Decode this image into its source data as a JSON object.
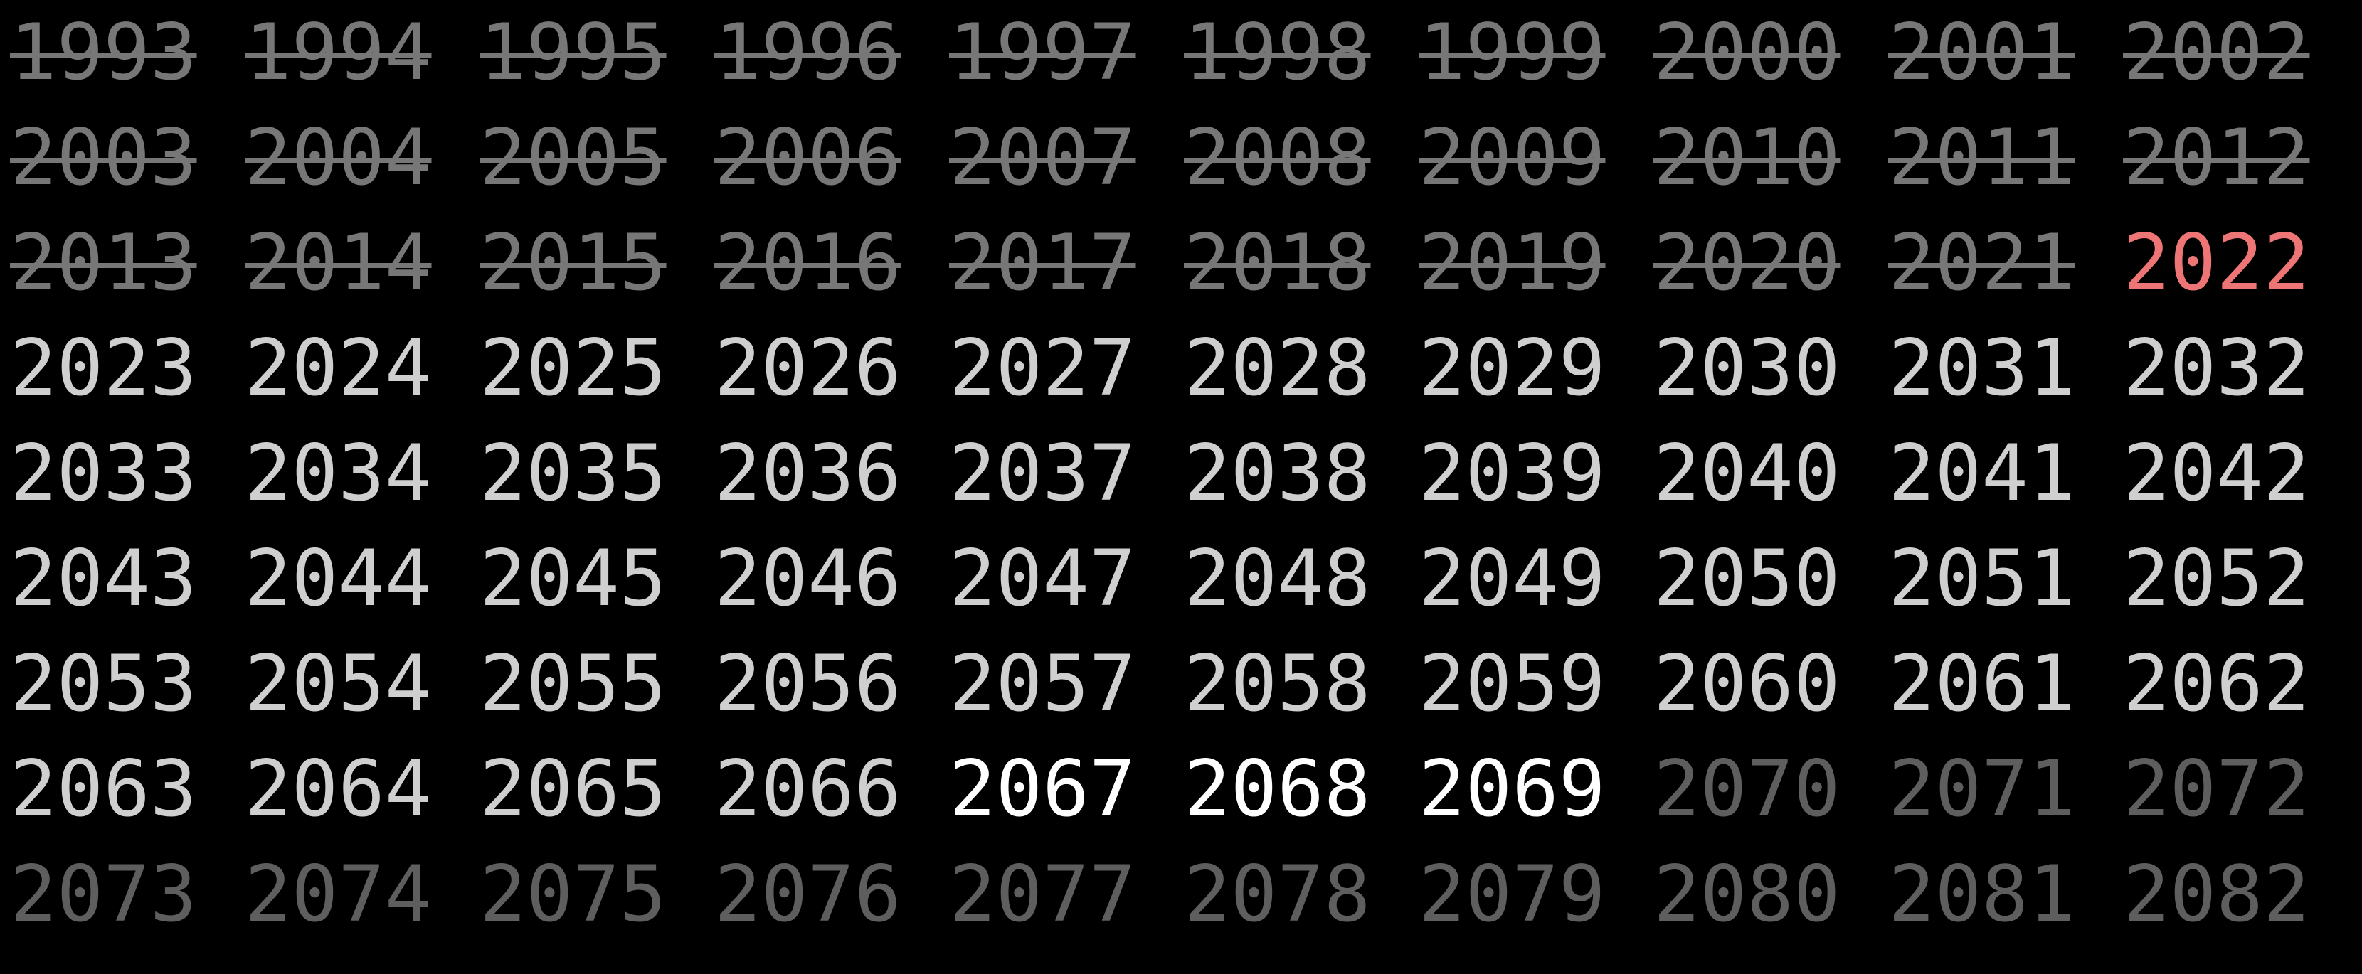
{
  "years": [
    {
      "label": "1993",
      "status": "crossed"
    },
    {
      "label": "1994",
      "status": "crossed"
    },
    {
      "label": "1995",
      "status": "crossed"
    },
    {
      "label": "1996",
      "status": "crossed"
    },
    {
      "label": "1997",
      "status": "crossed"
    },
    {
      "label": "1998",
      "status": "crossed"
    },
    {
      "label": "1999",
      "status": "crossed"
    },
    {
      "label": "2000",
      "status": "crossed"
    },
    {
      "label": "2001",
      "status": "crossed"
    },
    {
      "label": "2002",
      "status": "crossed"
    },
    {
      "label": "2003",
      "status": "crossed"
    },
    {
      "label": "2004",
      "status": "crossed"
    },
    {
      "label": "2005",
      "status": "crossed"
    },
    {
      "label": "2006",
      "status": "crossed"
    },
    {
      "label": "2007",
      "status": "crossed"
    },
    {
      "label": "2008",
      "status": "crossed"
    },
    {
      "label": "2009",
      "status": "crossed"
    },
    {
      "label": "2010",
      "status": "crossed"
    },
    {
      "label": "2011",
      "status": "crossed"
    },
    {
      "label": "2012",
      "status": "crossed"
    },
    {
      "label": "2013",
      "status": "crossed"
    },
    {
      "label": "2014",
      "status": "crossed"
    },
    {
      "label": "2015",
      "status": "crossed"
    },
    {
      "label": "2016",
      "status": "crossed"
    },
    {
      "label": "2017",
      "status": "crossed"
    },
    {
      "label": "2018",
      "status": "crossed"
    },
    {
      "label": "2019",
      "status": "crossed"
    },
    {
      "label": "2020",
      "status": "crossed"
    },
    {
      "label": "2021",
      "status": "crossed"
    },
    {
      "label": "2022",
      "status": "current"
    },
    {
      "label": "2023",
      "status": "future"
    },
    {
      "label": "2024",
      "status": "future"
    },
    {
      "label": "2025",
      "status": "future"
    },
    {
      "label": "2026",
      "status": "future"
    },
    {
      "label": "2027",
      "status": "future"
    },
    {
      "label": "2028",
      "status": "future"
    },
    {
      "label": "2029",
      "status": "future"
    },
    {
      "label": "2030",
      "status": "future"
    },
    {
      "label": "2031",
      "status": "future"
    },
    {
      "label": "2032",
      "status": "future"
    },
    {
      "label": "2033",
      "status": "future"
    },
    {
      "label": "2034",
      "status": "future"
    },
    {
      "label": "2035",
      "status": "future"
    },
    {
      "label": "2036",
      "status": "future"
    },
    {
      "label": "2037",
      "status": "future"
    },
    {
      "label": "2038",
      "status": "future"
    },
    {
      "label": "2039",
      "status": "future"
    },
    {
      "label": "2040",
      "status": "future"
    },
    {
      "label": "2041",
      "status": "future"
    },
    {
      "label": "2042",
      "status": "future"
    },
    {
      "label": "2043",
      "status": "future"
    },
    {
      "label": "2044",
      "status": "future"
    },
    {
      "label": "2045",
      "status": "future"
    },
    {
      "label": "2046",
      "status": "future"
    },
    {
      "label": "2047",
      "status": "future"
    },
    {
      "label": "2048",
      "status": "future"
    },
    {
      "label": "2049",
      "status": "future"
    },
    {
      "label": "2050",
      "status": "future"
    },
    {
      "label": "2051",
      "status": "future"
    },
    {
      "label": "2052",
      "status": "future"
    },
    {
      "label": "2053",
      "status": "future"
    },
    {
      "label": "2054",
      "status": "future"
    },
    {
      "label": "2055",
      "status": "future"
    },
    {
      "label": "2056",
      "status": "future"
    },
    {
      "label": "2057",
      "status": "future"
    },
    {
      "label": "2058",
      "status": "future"
    },
    {
      "label": "2059",
      "status": "future"
    },
    {
      "label": "2060",
      "status": "future"
    },
    {
      "label": "2061",
      "status": "future"
    },
    {
      "label": "2062",
      "status": "future"
    },
    {
      "label": "2063",
      "status": "future"
    },
    {
      "label": "2064",
      "status": "future"
    },
    {
      "label": "2065",
      "status": "future"
    },
    {
      "label": "2066",
      "status": "future"
    },
    {
      "label": "2067",
      "status": "highlight"
    },
    {
      "label": "2068",
      "status": "highlight"
    },
    {
      "label": "2069",
      "status": "highlight"
    },
    {
      "label": "2070",
      "status": "dim"
    },
    {
      "label": "2071",
      "status": "dim"
    },
    {
      "label": "2072",
      "status": "dim"
    },
    {
      "label": "2073",
      "status": "dim"
    },
    {
      "label": "2074",
      "status": "dim"
    },
    {
      "label": "2075",
      "status": "dim"
    },
    {
      "label": "2076",
      "status": "dim"
    },
    {
      "label": "2077",
      "status": "dim"
    },
    {
      "label": "2078",
      "status": "dim"
    },
    {
      "label": "2079",
      "status": "dim"
    },
    {
      "label": "2080",
      "status": "dim"
    },
    {
      "label": "2081",
      "status": "dim"
    },
    {
      "label": "2082",
      "status": "dim"
    }
  ],
  "colors": {
    "background": "#000000",
    "crossed": "#777777",
    "current": "#ee7575",
    "future": "#cfcfcf",
    "highlight": "#ffffff",
    "dim": "#5e5e5e"
  }
}
